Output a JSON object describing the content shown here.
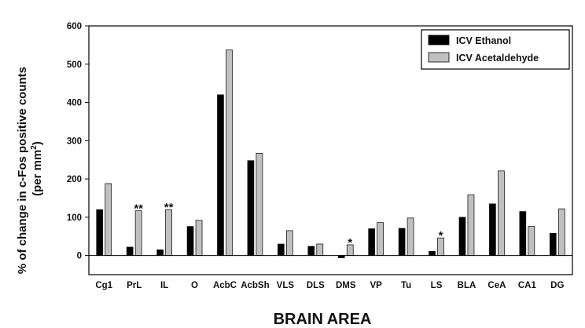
{
  "chart_data": {
    "type": "bar",
    "xlabel": "BRAIN AREA",
    "ylabel_line1": "% of change in c-Fos  positive counts",
    "ylabel_line2_prefix": "(per mm",
    "ylabel_line2_sup": "2",
    "ylabel_line2_suffix": ")",
    "ylim": [
      -50,
      600
    ],
    "yticks": [
      0,
      100,
      200,
      300,
      400,
      500,
      600
    ],
    "categories": [
      "Cg1",
      "PrL",
      "IL",
      "O",
      "AcbC",
      "AcbSh",
      "VLS",
      "DLS",
      "DMS",
      "VP",
      "Tu",
      "LS",
      "BLA",
      "CeA",
      "CA1",
      "DG"
    ],
    "series": [
      {
        "name": "ICV Ethanol",
        "color": "#000000",
        "values": [
          120,
          22,
          15,
          76,
          420,
          248,
          30,
          24,
          -6,
          70,
          71,
          11,
          100,
          135,
          115,
          58
        ]
      },
      {
        "name": "ICV Acetaldehyde",
        "color": "#c0c0c0",
        "values": [
          188,
          117,
          120,
          92,
          537,
          267,
          65,
          30,
          28,
          86,
          98,
          46,
          159,
          221,
          76,
          122
        ]
      }
    ],
    "annotations": [
      {
        "category": "PrL",
        "text": "**"
      },
      {
        "category": "IL",
        "text": "**"
      },
      {
        "category": "DMS",
        "text": "*"
      },
      {
        "category": "LS",
        "text": "*"
      }
    ],
    "legend_position": "top-right",
    "grid": false,
    "zero_line": true
  }
}
